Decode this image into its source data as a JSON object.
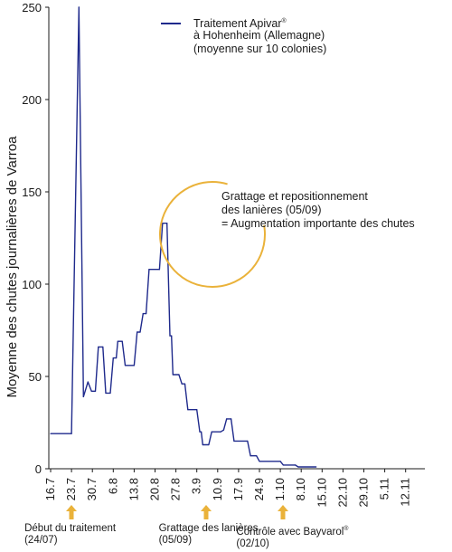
{
  "chart_data": {
    "type": "line",
    "ylabel": "Moyenne des chutes journalières de Varroa",
    "xlabel": "",
    "ylim": [
      0,
      250
    ],
    "yticks": [
      0,
      50,
      100,
      150,
      200,
      250
    ],
    "x_tick_labels": [
      "16.7",
      "23.7",
      "30.7",
      "6.8",
      "13.8",
      "20.8",
      "27.8",
      "3.9",
      "10.9",
      "17.9",
      "24.9",
      "1.10",
      "8.10",
      "15.10",
      "22.10",
      "29.10",
      "5.11",
      "12.11"
    ],
    "x_tick_days": [
      0,
      7,
      14,
      21,
      28,
      35,
      42,
      49,
      56,
      63,
      70,
      77,
      84,
      91,
      98,
      105,
      112,
      119
    ],
    "series": [
      {
        "name": "Traitement Apivar® à Hohenheim (Allemagne) (moyenne sur 10 colonies)",
        "color": "#1f2a8c",
        "points": [
          [
            0,
            19
          ],
          [
            7,
            19
          ],
          [
            9.5,
            250
          ],
          [
            11,
            39
          ],
          [
            12.5,
            47
          ],
          [
            13.7,
            42
          ],
          [
            15,
            42
          ],
          [
            16,
            66
          ],
          [
            17.5,
            66
          ],
          [
            18.5,
            41
          ],
          [
            20,
            41
          ],
          [
            21,
            60
          ],
          [
            22,
            60
          ],
          [
            22.5,
            69
          ],
          [
            24,
            69
          ],
          [
            25,
            56
          ],
          [
            28,
            56
          ],
          [
            29,
            74
          ],
          [
            30,
            74
          ],
          [
            31,
            84
          ],
          [
            32,
            84
          ],
          [
            33,
            108
          ],
          [
            36.5,
            108
          ],
          [
            37.5,
            133
          ],
          [
            39,
            133
          ],
          [
            40,
            72
          ],
          [
            40.5,
            72
          ],
          [
            41,
            51
          ],
          [
            43,
            51
          ],
          [
            44,
            46
          ],
          [
            45,
            46
          ],
          [
            46,
            32
          ],
          [
            49,
            32
          ],
          [
            50,
            20
          ],
          [
            50.5,
            20
          ],
          [
            51,
            13
          ],
          [
            53,
            13
          ],
          [
            54,
            20
          ],
          [
            57,
            20
          ],
          [
            58,
            21
          ],
          [
            59,
            27
          ],
          [
            60.5,
            27
          ],
          [
            61.5,
            15
          ],
          [
            66,
            15
          ],
          [
            67,
            7
          ],
          [
            69,
            7
          ],
          [
            70,
            4
          ],
          [
            77,
            4
          ],
          [
            78,
            2
          ],
          [
            82,
            2
          ],
          [
            83,
            1
          ],
          [
            89,
            1
          ]
        ]
      }
    ],
    "legend": {
      "lines": [
        "Traitement Apivar",
        "à Hohenheim (Allemagne)",
        "(moyenne sur 10 colonies)"
      ],
      "sup": "®"
    },
    "annotation": {
      "lines": [
        "Grattage et repositionnement",
        "des lanières (05/09)",
        "= Augmentation importante des chutes"
      ],
      "color": "#eab23a"
    },
    "events": [
      {
        "day": 7,
        "lines": [
          "Début du traitement",
          "(24/07)"
        ]
      },
      {
        "day": 52,
        "lines": [
          "Grattage des lanières",
          "(05/09)"
        ]
      },
      {
        "day": 78,
        "lines": [
          "Contrôle avec Bayvarol",
          "(02/10)"
        ],
        "sup": "®"
      }
    ],
    "arrow_color": "#eab23a"
  }
}
